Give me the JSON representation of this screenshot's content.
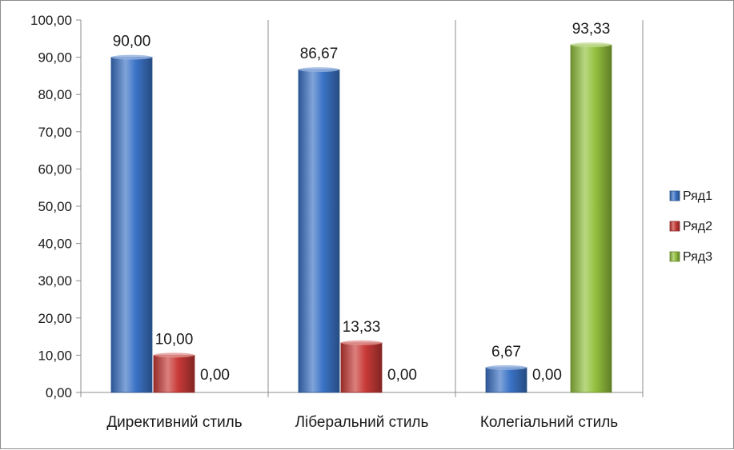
{
  "chart_data": {
    "type": "bar",
    "categories": [
      "Директивний стиль",
      "Ліберальний стиль",
      "Колегіальний стиль"
    ],
    "series": [
      {
        "name": "Ряд1",
        "values": [
          90.0,
          86.67,
          6.67
        ],
        "color": "#3b73c6"
      },
      {
        "name": "Ряд2",
        "values": [
          10.0,
          13.33,
          0.0
        ],
        "color": "#c83a37"
      },
      {
        "name": "Ряд3",
        "values": [
          0.0,
          0.0,
          93.33
        ],
        "color": "#93c13e"
      }
    ],
    "data_labels": [
      [
        "90,00",
        "86,67",
        "6,67"
      ],
      [
        "10,00",
        "13,33",
        "0,00"
      ],
      [
        "0,00",
        "0,00",
        "93,33"
      ]
    ],
    "yticks": [
      "0,00",
      "10,00",
      "20,00",
      "30,00",
      "40,00",
      "50,00",
      "60,00",
      "70,00",
      "80,00",
      "90,00",
      "100,00"
    ],
    "ylim": [
      0,
      100
    ],
    "ytick_step": 10,
    "title": "",
    "xlabel": "",
    "ylabel": "",
    "grid": "vertical-category-separators",
    "legend_position": "right"
  }
}
